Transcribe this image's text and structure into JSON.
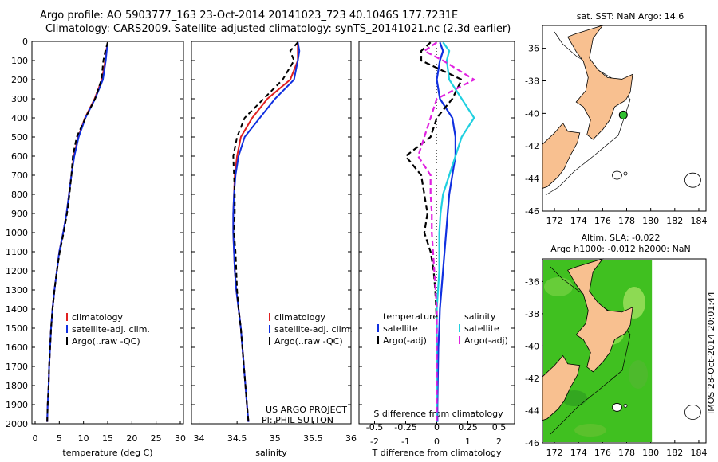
{
  "header": {
    "line1": "Argo profile: AO 5903777_163 23-Oct-2014 20141023_723 40.1046S 177.7231E",
    "line2": "Climatology: CARS2009. Satellite-adjusted climatology: synTS_20141021.nc (2.3d earlier)"
  },
  "stamp": "IMOS 28-Oct-2014 20:01:44",
  "colors": {
    "clim": "#e02020",
    "sat": "#1030e0",
    "argo": "#000000",
    "sat_s": "#20d0e0",
    "argo_s": "#e020e0",
    "land": "#f8c090",
    "ssh": "#40c020"
  },
  "chart_data": [
    {
      "type": "line",
      "name": "temperature-profile",
      "xlabel": "temperature (deg C)",
      "xlim": [
        0,
        30
      ],
      "xticks": [
        "0",
        "5",
        "10",
        "15",
        "20",
        "25",
        "30"
      ],
      "ylim": [
        0,
        2000
      ],
      "yticks": [
        "0",
        "100",
        "200",
        "300",
        "400",
        "500",
        "600",
        "700",
        "800",
        "900",
        "1000",
        "1100",
        "1200",
        "1300",
        "1400",
        "1500",
        "1600",
        "1700",
        "1800",
        "1900",
        "2000"
      ],
      "depth": [
        5,
        50,
        100,
        200,
        300,
        400,
        500,
        600,
        700,
        800,
        900,
        1000,
        1100,
        1200,
        1300,
        1400,
        1500,
        1600,
        1700,
        1800,
        1900,
        1990
      ],
      "series": [
        {
          "name": "climatology",
          "values": [
            15,
            14.7,
            14.5,
            13.8,
            12.3,
            10.3,
            8.9,
            8.0,
            7.5,
            7.0,
            6.5,
            5.8,
            5.0,
            4.5,
            4.0,
            3.6,
            3.3,
            3.1,
            2.9,
            2.8,
            2.6,
            2.5
          ]
        },
        {
          "name": "satellite-adj. clim.",
          "values": [
            15,
            14.8,
            14.6,
            14.0,
            12.4,
            10.4,
            9.0,
            8.1,
            7.5,
            7.0,
            6.5,
            5.8,
            5.0,
            4.5,
            4.0,
            3.6,
            3.3,
            3.1,
            2.9,
            2.8,
            2.6,
            2.5
          ]
        },
        {
          "name": "Argo(..raw -QC)",
          "values": [
            15,
            14.5,
            14.1,
            13.7,
            12.4,
            10.4,
            8.6,
            7.8,
            7.5,
            7.1,
            6.6,
            5.9,
            5.1,
            4.5,
            4.0,
            3.6,
            3.3,
            3.1,
            2.9,
            2.8,
            2.6,
            2.5
          ]
        }
      ],
      "legend": [
        "climatology",
        "satellite-adj. clim.",
        "Argo(..raw -QC)"
      ]
    },
    {
      "type": "line",
      "name": "salinity-profile",
      "xlabel": "salinity",
      "xlim": [
        33.9,
        36.0
      ],
      "xticks": [
        "34",
        "34.5",
        "35",
        "35.5",
        "36"
      ],
      "depth": [
        5,
        50,
        100,
        200,
        300,
        400,
        500,
        600,
        700,
        800,
        900,
        1000,
        1100,
        1200,
        1300,
        1400,
        1500,
        1600,
        1700,
        1800,
        1900,
        1990
      ],
      "series": [
        {
          "name": "climatology",
          "values": [
            35.3,
            35.3,
            35.3,
            35.2,
            34.9,
            34.7,
            34.55,
            34.5,
            34.47,
            34.46,
            34.45,
            34.45,
            34.46,
            34.47,
            34.49,
            34.52,
            34.55,
            34.57,
            34.59,
            34.61,
            34.63,
            34.65
          ]
        },
        {
          "name": "satellite-adj. clim.",
          "values": [
            35.3,
            35.32,
            35.3,
            35.25,
            35.0,
            34.8,
            34.6,
            34.52,
            34.48,
            34.46,
            34.45,
            34.45,
            34.46,
            34.47,
            34.49,
            34.52,
            34.55,
            34.57,
            34.59,
            34.61,
            34.63,
            34.65
          ]
        },
        {
          "name": "Argo(..raw -QC)",
          "values": [
            35.3,
            35.2,
            35.25,
            35.1,
            34.85,
            34.6,
            34.5,
            34.45,
            34.46,
            34.47,
            34.47,
            34.46,
            34.48,
            34.49,
            34.5,
            34.52,
            34.55,
            34.57,
            34.59,
            34.61,
            34.63,
            34.65
          ]
        }
      ],
      "legend": [
        "climatology",
        "satellite-adj. clim.",
        "Argo(..raw -QC)"
      ],
      "credit1": "US ARGO PROJECT",
      "credit2": "PI: PHIL SUTTON"
    },
    {
      "type": "line",
      "name": "difference-profile",
      "xlabel_top": "S difference from climatology",
      "xlabel": "T difference from climatology",
      "xlim": [
        -2.5,
        2.5
      ],
      "xticks": [
        "-2",
        "-1",
        "0",
        "1",
        "2"
      ],
      "sticks": [
        "-0.5",
        "-0.25",
        "0",
        "0.25",
        "0.5"
      ],
      "depth": [
        5,
        50,
        100,
        200,
        300,
        400,
        500,
        600,
        700,
        800,
        900,
        1000,
        1100,
        1200,
        1300,
        1400,
        1500,
        1600,
        1700,
        1800,
        1900,
        1990
      ],
      "series": [
        {
          "name": "T satellite",
          "values": [
            0.1,
            0.2,
            0.1,
            0.0,
            0.1,
            0.5,
            0.6,
            0.6,
            0.5,
            0.4,
            0.35,
            0.3,
            0.25,
            0.2,
            0.15,
            0.1,
            0.08,
            0.05,
            0.04,
            0.03,
            0.02,
            0.02
          ]
        },
        {
          "name": "T Argo(-adj)",
          "values": [
            -0.2,
            -0.5,
            -0.5,
            0.8,
            0.5,
            0.0,
            -0.2,
            -1.0,
            -0.5,
            -0.4,
            -0.3,
            -0.4,
            -0.2,
            -0.1,
            -0.05,
            -0.02,
            0.0,
            0.0,
            0.0,
            0.0,
            0.0,
            0.0
          ]
        },
        {
          "name": "S satellite",
          "values": [
            0.05,
            0.1,
            0.08,
            0.1,
            0.2,
            0.3,
            0.2,
            0.15,
            0.1,
            0.05,
            0.03,
            0.02,
            0.02,
            0.02,
            0.01,
            0.0,
            0.0,
            0.0,
            0.0,
            0.0,
            0.0,
            0.0
          ]
        },
        {
          "name": "S Argo(-adj)",
          "values": [
            0.0,
            -0.1,
            0.05,
            0.3,
            0.0,
            -0.05,
            -0.1,
            -0.15,
            -0.05,
            -0.05,
            -0.04,
            -0.04,
            -0.03,
            -0.02,
            -0.01,
            0.0,
            0.0,
            0.0,
            0.0,
            0.0,
            0.0,
            0.0
          ]
        }
      ],
      "legend_t_title": "temperature",
      "legend_s_title": "salinity",
      "legend": [
        "satellite",
        "Argo(-adj)",
        "satellite",
        "Argo(-adj)"
      ]
    },
    {
      "type": "map",
      "name": "sst-map",
      "title": "sat. SST: NaN Argo: 14.6",
      "lon_ticks": [
        "172",
        "174",
        "176",
        "178",
        "180",
        "182",
        "184"
      ],
      "lat_ticks": [
        "-36",
        "-38",
        "-40",
        "-42",
        "-44",
        "-46"
      ],
      "float_lon": 177.72,
      "float_lat": -40.1
    },
    {
      "type": "map",
      "name": "ssh-map",
      "title1": "Altim. SLA: -0.022",
      "title2": "Argo h1000: -0.012 h2000: NaN",
      "lon_ticks": [
        "172",
        "174",
        "176",
        "178",
        "180",
        "182",
        "184"
      ],
      "lat_ticks": [
        "-36",
        "-38",
        "-40",
        "-42",
        "-44",
        "-46"
      ]
    }
  ]
}
